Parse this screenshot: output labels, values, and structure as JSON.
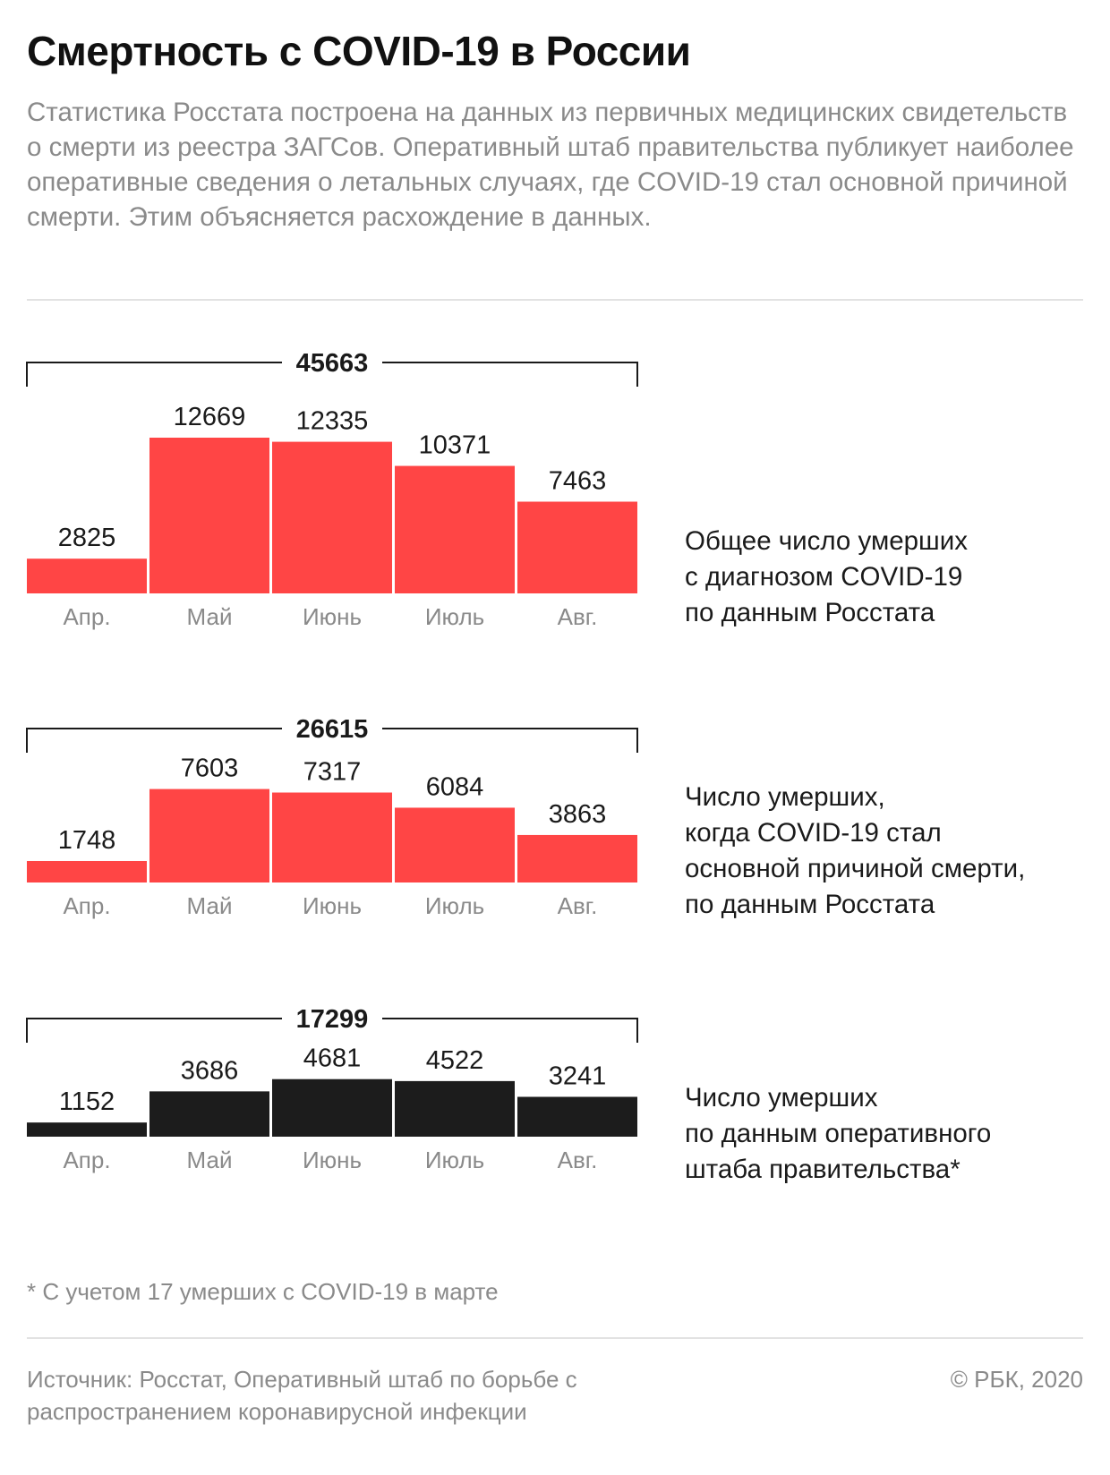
{
  "title": "Смертность с COVID-19 в России",
  "subtitle": "Статистика Росстата построена на данных из первичных медицинских свидетельств о смерти из реестра ЗАГСов. Оперативный штаб правительства публикует наиболее оперативные сведения о летальных случаях, где COVID-19 стал основной причиной смерти. Этим объясняется расхождение в данных.",
  "colors": {
    "red": "#ff4545",
    "black": "#1c1c1c",
    "muted": "#8a8a8a"
  },
  "chart_data": [
    {
      "type": "bar",
      "total": "45663",
      "categories": [
        "Апр.",
        "Май",
        "Июнь",
        "Июль",
        "Авг."
      ],
      "values": [
        2825,
        12669,
        12335,
        10371,
        7463
      ],
      "caption": [
        "Общее число умерших",
        "с диагнозом COVID-19",
        "по данным Росстата"
      ],
      "color": "#ff4545",
      "ylim": [
        0,
        12669
      ]
    },
    {
      "type": "bar",
      "total": "26615",
      "categories": [
        "Апр.",
        "Май",
        "Июнь",
        "Июль",
        "Авг."
      ],
      "values": [
        1748,
        7603,
        7317,
        6084,
        3863
      ],
      "caption": [
        "Число умерших,",
        "когда COVID-19 стал",
        "основной причиной смерти,",
        "по данным Росстата"
      ],
      "color": "#ff4545",
      "ylim": [
        0,
        12669
      ]
    },
    {
      "type": "bar",
      "total": "17299",
      "categories": [
        "Апр.",
        "Май",
        "Июнь",
        "Июль",
        "Авг."
      ],
      "values": [
        1152,
        3686,
        4681,
        4522,
        3241
      ],
      "caption": [
        "Число умерших",
        "по данным оперативного",
        "штаба правительства*"
      ],
      "color": "#1c1c1c",
      "ylim": [
        0,
        12669
      ]
    }
  ],
  "footnote": "* С учетом 17 умерших с COVID-19 в марте",
  "source": "Источник: Росстат, Оперативный штаб по борьбе с распространением коронавирусной инфекции",
  "copyright": "© РБК, 2020"
}
